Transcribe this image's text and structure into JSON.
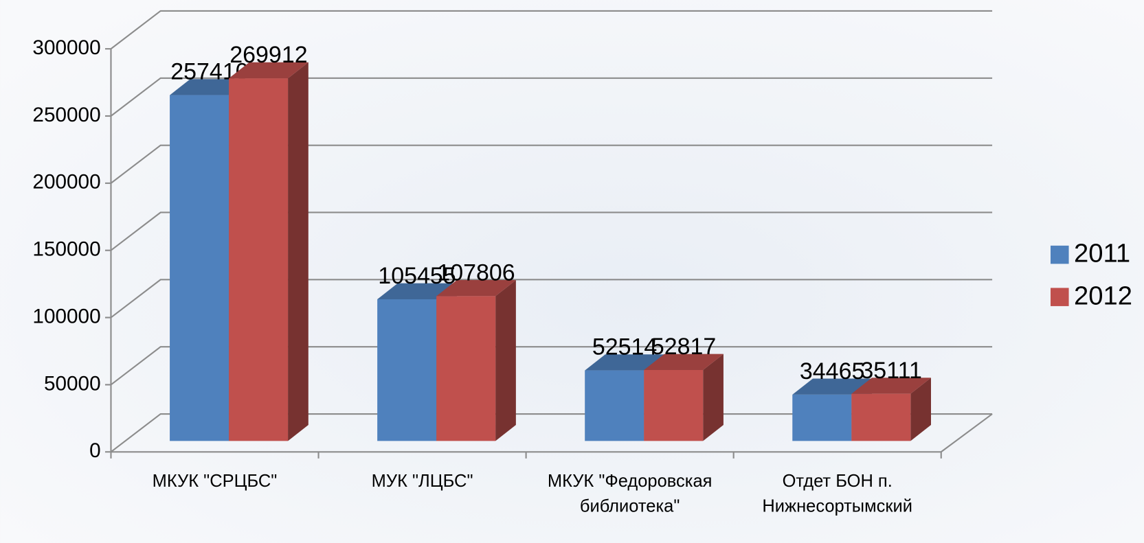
{
  "chart_data": {
    "type": "bar3d",
    "categories": [
      "МКУК \"СРЦБС\"",
      "МУК \"ЛЦБС\"",
      "МКУК \"Федоровская библиотека\"",
      "Отдет БОН п. Нижнесортымский"
    ],
    "series": [
      {
        "name": "2011",
        "color": "#4f81bd",
        "values": [
          257410,
          105455,
          52514,
          34465
        ]
      },
      {
        "name": "2012",
        "color": "#c0504d",
        "values": [
          269912,
          107806,
          52817,
          35111
        ]
      }
    ],
    "ylim": [
      0,
      300000
    ],
    "yticks": [
      0,
      50000,
      100000,
      150000,
      200000,
      250000,
      300000
    ],
    "grid": true,
    "legend": "right"
  }
}
